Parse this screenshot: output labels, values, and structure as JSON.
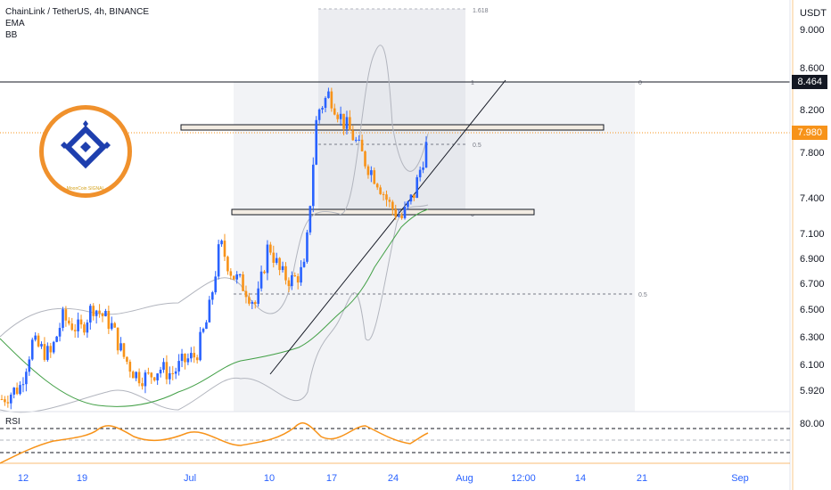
{
  "header": {
    "title": "ChainLink / TetherUS, 4h, BINANCE",
    "indicators": [
      "EMA",
      "BB"
    ]
  },
  "price_axis": {
    "currency": "USDT",
    "ticks": [
      "9.000",
      "8.600",
      "8.200",
      "7.800",
      "7.400",
      "7.100",
      "6.900",
      "6.700",
      "6.500",
      "6.300",
      "6.100",
      "5.920"
    ],
    "resistance_badge": "8.464",
    "last_price_badge": "7.980"
  },
  "rsi": {
    "label": "RSI",
    "level": "80.00"
  },
  "time_axis": {
    "ticks": [
      "12",
      "19",
      "Jul",
      "10",
      "17",
      "24",
      "Aug",
      "12:00",
      "14",
      "21",
      "Sep"
    ]
  },
  "fib_labels": {
    "top": "1.618",
    "zero_right": "0",
    "half_right": "0.5",
    "zero_inner": "0",
    "half_inner": "0.5",
    "one_inner": "1"
  },
  "logo": {
    "caption": "MoonCoin SIGNAL"
  },
  "colors": {
    "up": "#2962ff",
    "down": "#f7931a",
    "ema": "#43a047",
    "bb": "#b2b5be",
    "last_price": "#f7931a",
    "axis_accent": "#f7931a",
    "time_text": "#2962ff"
  },
  "chart_data": {
    "type": "candlestick",
    "symbol": "ChainLink / TetherUS",
    "timeframe": "4h",
    "exchange": "BINANCE",
    "ylim": [
      5.85,
      9.15
    ],
    "key_levels": [
      8.464,
      7.98
    ],
    "close_path": [
      [
        0,
        5.95
      ],
      [
        3,
        6.05
      ],
      [
        5,
        6.4
      ],
      [
        8,
        6.3
      ],
      [
        10,
        6.6
      ],
      [
        13,
        6.5
      ],
      [
        15,
        6.7
      ],
      [
        18,
        6.55
      ],
      [
        20,
        6.3
      ],
      [
        22,
        6.15
      ],
      [
        24,
        6.12
      ],
      [
        26,
        6.2
      ],
      [
        28,
        6.15
      ],
      [
        30,
        6.25
      ],
      [
        32,
        6.3
      ],
      [
        34,
        6.6
      ],
      [
        36,
        7.2
      ],
      [
        38,
        6.95
      ],
      [
        40,
        6.85
      ],
      [
        42,
        6.7
      ],
      [
        44,
        7.2
      ],
      [
        46,
        6.95
      ],
      [
        48,
        6.9
      ],
      [
        50,
        7.0
      ],
      [
        52,
        8.25
      ],
      [
        54,
        8.4
      ],
      [
        56,
        8.2
      ],
      [
        58,
        8.05
      ],
      [
        60,
        7.85
      ],
      [
        62,
        7.7
      ],
      [
        64,
        7.5
      ],
      [
        66,
        7.4
      ],
      [
        68,
        7.6
      ],
      [
        70,
        7.98
      ]
    ]
  }
}
